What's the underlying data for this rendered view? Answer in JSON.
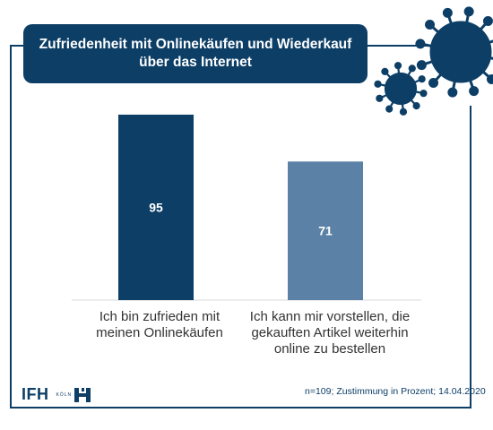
{
  "header": {
    "title_line1": "Zufriedenheit mit Onlinekäufen und Wiederkauf",
    "title_line2": "über das Internet"
  },
  "chart_data": {
    "type": "bar",
    "categories": [
      "Ich bin zufrieden mit meinen Onlinekäufen",
      "Ich kann mir vorstellen, die gekauften Artikel weiterhin online zu bestellen"
    ],
    "category_lines": [
      [
        "Ich bin zufrieden mit",
        "meinen Onlinekäufen"
      ],
      [
        "Ich kann mir vorstellen, die",
        "gekauften Artikel weiterhin",
        "online zu bestellen"
      ]
    ],
    "values": [
      95,
      71
    ],
    "value_labels": [
      "95",
      "71"
    ],
    "colors": [
      "#0c3e66",
      "#5b82a6"
    ],
    "ylim": [
      0,
      100
    ],
    "grid": false,
    "legend": "none"
  },
  "footer": {
    "note": "n=109; Zustimmung in Prozent; 14.04.2020",
    "logo": "IFH",
    "logo_sub": "KÖLN"
  }
}
